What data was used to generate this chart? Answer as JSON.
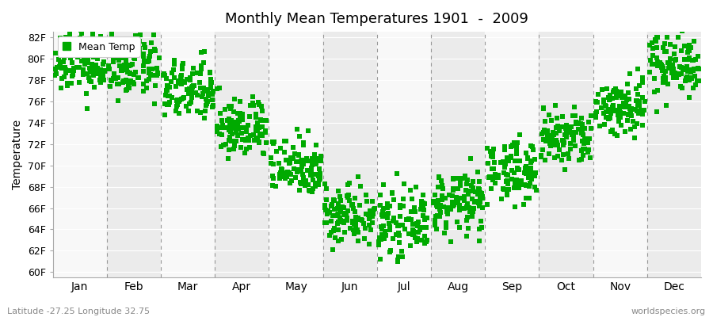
{
  "title": "Monthly Mean Temperatures 1901  -  2009",
  "ylabel": "Temperature",
  "y_tick_labels": [
    "60F",
    "62F",
    "64F",
    "66F",
    "68F",
    "70F",
    "72F",
    "74F",
    "76F",
    "78F",
    "80F",
    "82F"
  ],
  "y_tick_values": [
    60,
    62,
    64,
    66,
    68,
    70,
    72,
    74,
    76,
    78,
    80,
    82
  ],
  "ylim": [
    59.5,
    82.5
  ],
  "months": [
    "Jan",
    "Feb",
    "Mar",
    "Apr",
    "May",
    "Jun",
    "Jul",
    "Aug",
    "Sep",
    "Oct",
    "Nov",
    "Dec"
  ],
  "month_centers": [
    0.5,
    1.5,
    2.5,
    3.5,
    4.5,
    5.5,
    6.5,
    7.5,
    8.5,
    9.5,
    10.5,
    11.5
  ],
  "month_boundaries": [
    0,
    1,
    2,
    3,
    4,
    5,
    6,
    7,
    8,
    9,
    10,
    11,
    12
  ],
  "mean_temps_by_month": [
    79.5,
    79.2,
    77.0,
    73.5,
    70.0,
    65.5,
    64.5,
    66.5,
    69.5,
    72.5,
    75.5,
    79.5
  ],
  "scatter_color": "#00aa00",
  "bg_light": "#ebebeb",
  "bg_white": "#f8f8f8",
  "dashed_line_color": "#999999",
  "legend_label": "Mean Temp",
  "subtitle": "Latitude -27.25 Longitude 32.75",
  "watermark": "worldspecies.org",
  "num_years": 109,
  "noise_std": 1.4,
  "marker_size": 4,
  "dpi": 100,
  "figsize": [
    9.0,
    4.0
  ]
}
